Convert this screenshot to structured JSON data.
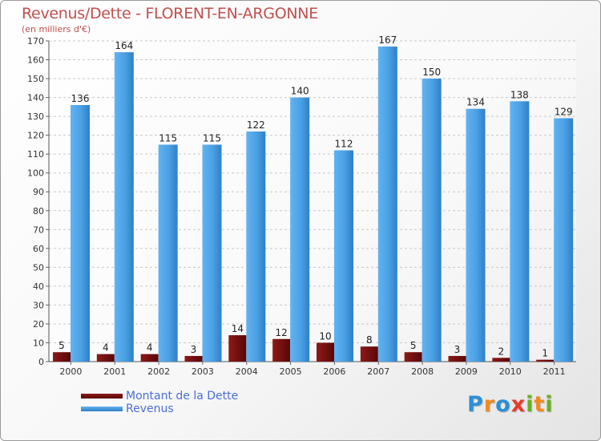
{
  "header": {
    "title": "Revenus/Dette - FLORENT-EN-ARGONNE",
    "subtitle": "(en milliers d'€)"
  },
  "legend": {
    "items": [
      {
        "label": "Montant de la Dette",
        "color": "#7a0f0f"
      },
      {
        "label": "Revenus",
        "color": "#4fa3e6"
      }
    ]
  },
  "brand": {
    "letters": [
      "P",
      "r",
      "o",
      "x",
      "i",
      "t",
      "i"
    ],
    "colors": [
      "#2b8fd8",
      "#f28a1e",
      "#2b8fd8",
      "#e63a2e",
      "#6ab023",
      "#f28a1e",
      "#6ab023"
    ]
  },
  "chart_data": {
    "type": "bar",
    "title": "Revenus/Dette - FLORENT-EN-ARGONNE",
    "ylabel": "(en milliers d'€)",
    "xlabel": "",
    "categories": [
      "2000",
      "2001",
      "2002",
      "2003",
      "2004",
      "2005",
      "2006",
      "2007",
      "2008",
      "2009",
      "2010",
      "2011"
    ],
    "series": [
      {
        "name": "Montant de la Dette",
        "color": "#7a0f0f",
        "values": [
          5,
          4,
          4,
          3,
          14,
          12,
          10,
          8,
          5,
          3,
          2,
          1
        ]
      },
      {
        "name": "Revenus",
        "color": "#4fa3e6",
        "values": [
          136,
          164,
          115,
          115,
          122,
          140,
          112,
          167,
          150,
          134,
          138,
          129
        ]
      }
    ],
    "ylim": [
      0,
      170
    ],
    "yticks": [
      0,
      10,
      20,
      30,
      40,
      50,
      60,
      70,
      80,
      90,
      100,
      110,
      120,
      130,
      140,
      150,
      160,
      170
    ],
    "grid": true,
    "legend_position": "bottom-left"
  }
}
